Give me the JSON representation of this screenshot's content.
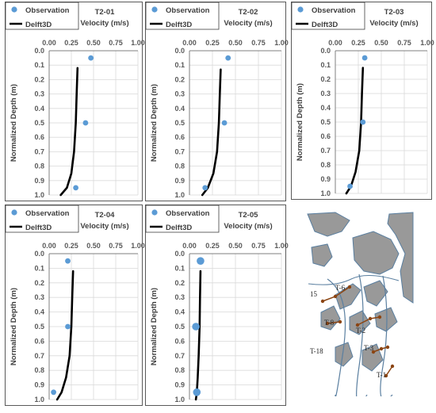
{
  "legend": {
    "observation": "Observation",
    "model": "Delft3D"
  },
  "axes": {
    "xlabel": "Velocity (m/s)",
    "ylabel": "Normalized Depth (m)",
    "xticks": [
      "0.00",
      "0.25",
      "0.50",
      "0.75",
      "1.00"
    ],
    "yticks": [
      "0.0",
      "0.1",
      "0.2",
      "0.3",
      "0.4",
      "0.5",
      "0.6",
      "0.7",
      "0.8",
      "0.9",
      "1.0"
    ]
  },
  "colors": {
    "observation": "#5B9BD5",
    "model": "#000000",
    "grid": "#d9d9d9"
  },
  "chart_data": [
    {
      "type": "scatter",
      "title": "T2-01",
      "xlim": [
        0,
        1
      ],
      "ylim": [
        0,
        1
      ],
      "yaxis": "inverted",
      "grid": true,
      "legend": "top-left",
      "series": [
        {
          "name": "Observation",
          "points": [
            [
              0.47,
              0.05
            ],
            [
              0.41,
              0.5
            ],
            [
              0.3,
              0.95
            ]
          ]
        },
        {
          "name": "Delft3D",
          "points": [
            [
              0.32,
              0.12
            ],
            [
              0.31,
              0.3
            ],
            [
              0.3,
              0.5
            ],
            [
              0.28,
              0.7
            ],
            [
              0.25,
              0.85
            ],
            [
              0.2,
              0.95
            ],
            [
              0.13,
              1.0
            ]
          ]
        }
      ]
    },
    {
      "type": "scatter",
      "title": "T2-02",
      "xlim": [
        0,
        1
      ],
      "ylim": [
        0,
        1
      ],
      "yaxis": "inverted",
      "grid": true,
      "legend": "top-left",
      "series": [
        {
          "name": "Observation",
          "points": [
            [
              0.42,
              0.05
            ],
            [
              0.38,
              0.5
            ],
            [
              0.17,
              0.95
            ]
          ]
        },
        {
          "name": "Delft3D",
          "points": [
            [
              0.34,
              0.13
            ],
            [
              0.33,
              0.3
            ],
            [
              0.32,
              0.5
            ],
            [
              0.3,
              0.7
            ],
            [
              0.26,
              0.85
            ],
            [
              0.2,
              0.95
            ],
            [
              0.14,
              1.0
            ]
          ]
        }
      ]
    },
    {
      "type": "scatter",
      "title": "T2-03",
      "xlim": [
        0,
        1
      ],
      "ylim": [
        0,
        1
      ],
      "yaxis": "inverted",
      "grid": true,
      "legend": "top-left",
      "series": [
        {
          "name": "Observation",
          "points": [
            [
              0.32,
              0.05
            ],
            [
              0.3,
              0.5
            ],
            [
              0.16,
              0.95
            ]
          ]
        },
        {
          "name": "Delft3D",
          "points": [
            [
              0.3,
              0.12
            ],
            [
              0.29,
              0.3
            ],
            [
              0.28,
              0.5
            ],
            [
              0.26,
              0.7
            ],
            [
              0.22,
              0.85
            ],
            [
              0.17,
              0.95
            ],
            [
              0.12,
              1.0
            ]
          ]
        }
      ]
    },
    {
      "type": "scatter",
      "title": "T2-04",
      "xlim": [
        0,
        1
      ],
      "ylim": [
        0,
        1
      ],
      "yaxis": "inverted",
      "grid": true,
      "legend": "top-left",
      "series": [
        {
          "name": "Observation",
          "points": [
            [
              0.21,
              0.05
            ],
            [
              0.21,
              0.5
            ],
            [
              0.05,
              0.95
            ]
          ]
        },
        {
          "name": "Delft3D",
          "points": [
            [
              0.27,
              0.12
            ],
            [
              0.26,
              0.3
            ],
            [
              0.25,
              0.5
            ],
            [
              0.23,
              0.7
            ],
            [
              0.19,
              0.85
            ],
            [
              0.14,
              0.95
            ],
            [
              0.09,
              1.0
            ]
          ]
        }
      ]
    },
    {
      "type": "scatter",
      "title": "T2-05",
      "xlim": [
        0,
        1
      ],
      "ylim": [
        0,
        1
      ],
      "yaxis": "inverted",
      "grid": true,
      "legend": "top-left",
      "series": [
        {
          "name": "Observation",
          "points": [
            [
              0.12,
              0.05
            ],
            [
              0.07,
              0.5
            ],
            [
              0.08,
              0.95
            ]
          ]
        },
        {
          "name": "Delft3D",
          "points": [
            [
              0.12,
              0.12
            ],
            [
              0.115,
              0.3
            ],
            [
              0.11,
              0.5
            ],
            [
              0.1,
              0.7
            ],
            [
              0.09,
              0.85
            ],
            [
              0.08,
              0.95
            ],
            [
              0.07,
              1.0
            ]
          ]
        }
      ]
    }
  ],
  "map": {
    "labels": [
      "15",
      "T-6",
      "T-8",
      "T-2",
      "T-3",
      "T-18",
      "T-1"
    ],
    "colors": {
      "land": "#999999",
      "water": "#ffffff",
      "channel": "#5a7fa0",
      "transect": "#8b4513"
    }
  }
}
